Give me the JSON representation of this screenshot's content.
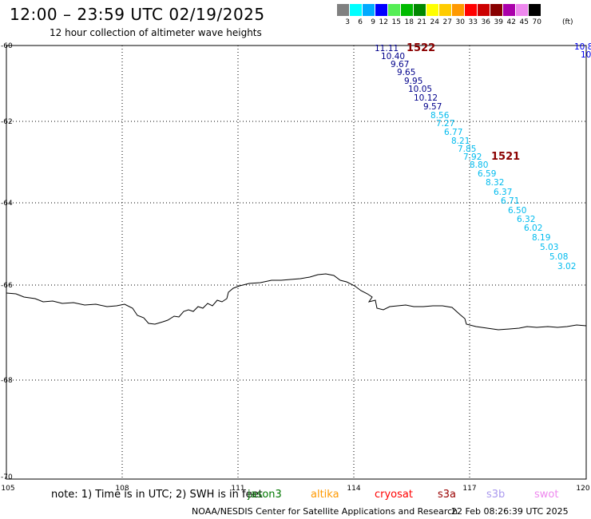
{
  "header": {
    "title": "12:00 – 23:59 UTC 02/19/2025",
    "subtitle": "12 hour collection of altimeter wave heights"
  },
  "legend": {
    "values": [
      "3",
      "6",
      "9",
      "12",
      "15",
      "18",
      "21",
      "24",
      "27",
      "30",
      "33",
      "36",
      "39",
      "42",
      "45",
      "70"
    ],
    "colors": [
      "#808080",
      "#00ffff",
      "#00aaff",
      "#0000ff",
      "#55ee55",
      "#00bb00",
      "#008800",
      "#ffff00",
      "#ffcc00",
      "#ff9900",
      "#ff0000",
      "#cc0000",
      "#880000",
      "#aa00aa",
      "#ee88ee",
      "#000000"
    ],
    "unit": "(ft)"
  },
  "map": {
    "lat_labels": [
      "-60",
      "-62",
      "-64",
      "-66",
      "-68",
      "-70"
    ],
    "lon_labels": [
      "105",
      "108",
      "111",
      "114",
      "117",
      "120"
    ],
    "track_1522": {
      "label": "1522",
      "values": [
        "11.11",
        "10.40",
        "9.67",
        "9.65",
        "9.95",
        "10.05",
        "10.12",
        "9.57",
        "8.56",
        "7.27",
        "6.77",
        "8.21",
        "7.85",
        "7.92"
      ]
    },
    "track_1521": {
      "label": "1521",
      "values": [
        "8.80",
        "6.59",
        "8.32",
        "6.37",
        "6.71",
        "6.50",
        "6.32",
        "6.02",
        "8.19",
        "5.03",
        "5.08",
        "3.02"
      ]
    },
    "edge_track": [
      "10.8",
      "10"
    ]
  },
  "footer": {
    "note": "note:  1) Time is in UTC;  2) SWH is in feet",
    "satellites": [
      {
        "name": "jason3",
        "color": "#007700"
      },
      {
        "name": "altika",
        "color": "#ff9900"
      },
      {
        "name": "cryosat",
        "color": "#ff0000"
      },
      {
        "name": "s3a",
        "color": "#990000"
      },
      {
        "name": "s3b",
        "color": "#aa99ee"
      },
      {
        "name": "swot",
        "color": "#ee88ee"
      }
    ],
    "credit": "NOAA/NESDIS Center for Satellite Applications and Research",
    "timestamp": "22 Feb 08:26:39 UTC 2025"
  },
  "colors": {
    "dark_blue": "#00008b",
    "blue": "#0000ee",
    "cyan": "#00bbee",
    "track_label": "#8b0000"
  }
}
